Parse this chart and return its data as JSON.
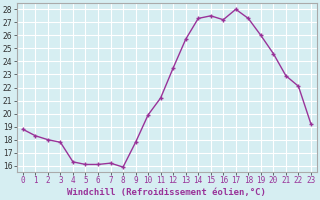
{
  "hours": [
    0,
    1,
    2,
    3,
    4,
    5,
    6,
    7,
    8,
    9,
    10,
    11,
    12,
    13,
    14,
    15,
    16,
    17,
    18,
    19,
    20,
    21,
    22,
    23
  ],
  "values": [
    18.8,
    18.3,
    18.0,
    17.8,
    16.3,
    16.1,
    16.1,
    16.2,
    15.9,
    17.8,
    19.9,
    21.2,
    23.5,
    25.7,
    27.3,
    27.5,
    27.2,
    28.0,
    27.3,
    26.0,
    24.6,
    22.9,
    22.1,
    19.2
  ],
  "line_color": "#993399",
  "marker": "+",
  "background_color": "#d6eef2",
  "grid_color": "#b0d8e0",
  "xlabel": "Windchill (Refroidissement éolien,°C)",
  "ylim": [
    15.5,
    28.5
  ],
  "xlim": [
    -0.5,
    23.5
  ],
  "yticks": [
    16,
    17,
    18,
    19,
    20,
    21,
    22,
    23,
    24,
    25,
    26,
    27,
    28
  ],
  "xticks": [
    0,
    1,
    2,
    3,
    4,
    5,
    6,
    7,
    8,
    9,
    10,
    11,
    12,
    13,
    14,
    15,
    16,
    17,
    18,
    19,
    20,
    21,
    22,
    23
  ],
  "tick_fontsize": 5.5,
  "xlabel_fontsize": 6.5,
  "line_width": 1.0,
  "marker_size": 3.5,
  "spine_color": "#aaaaaa"
}
